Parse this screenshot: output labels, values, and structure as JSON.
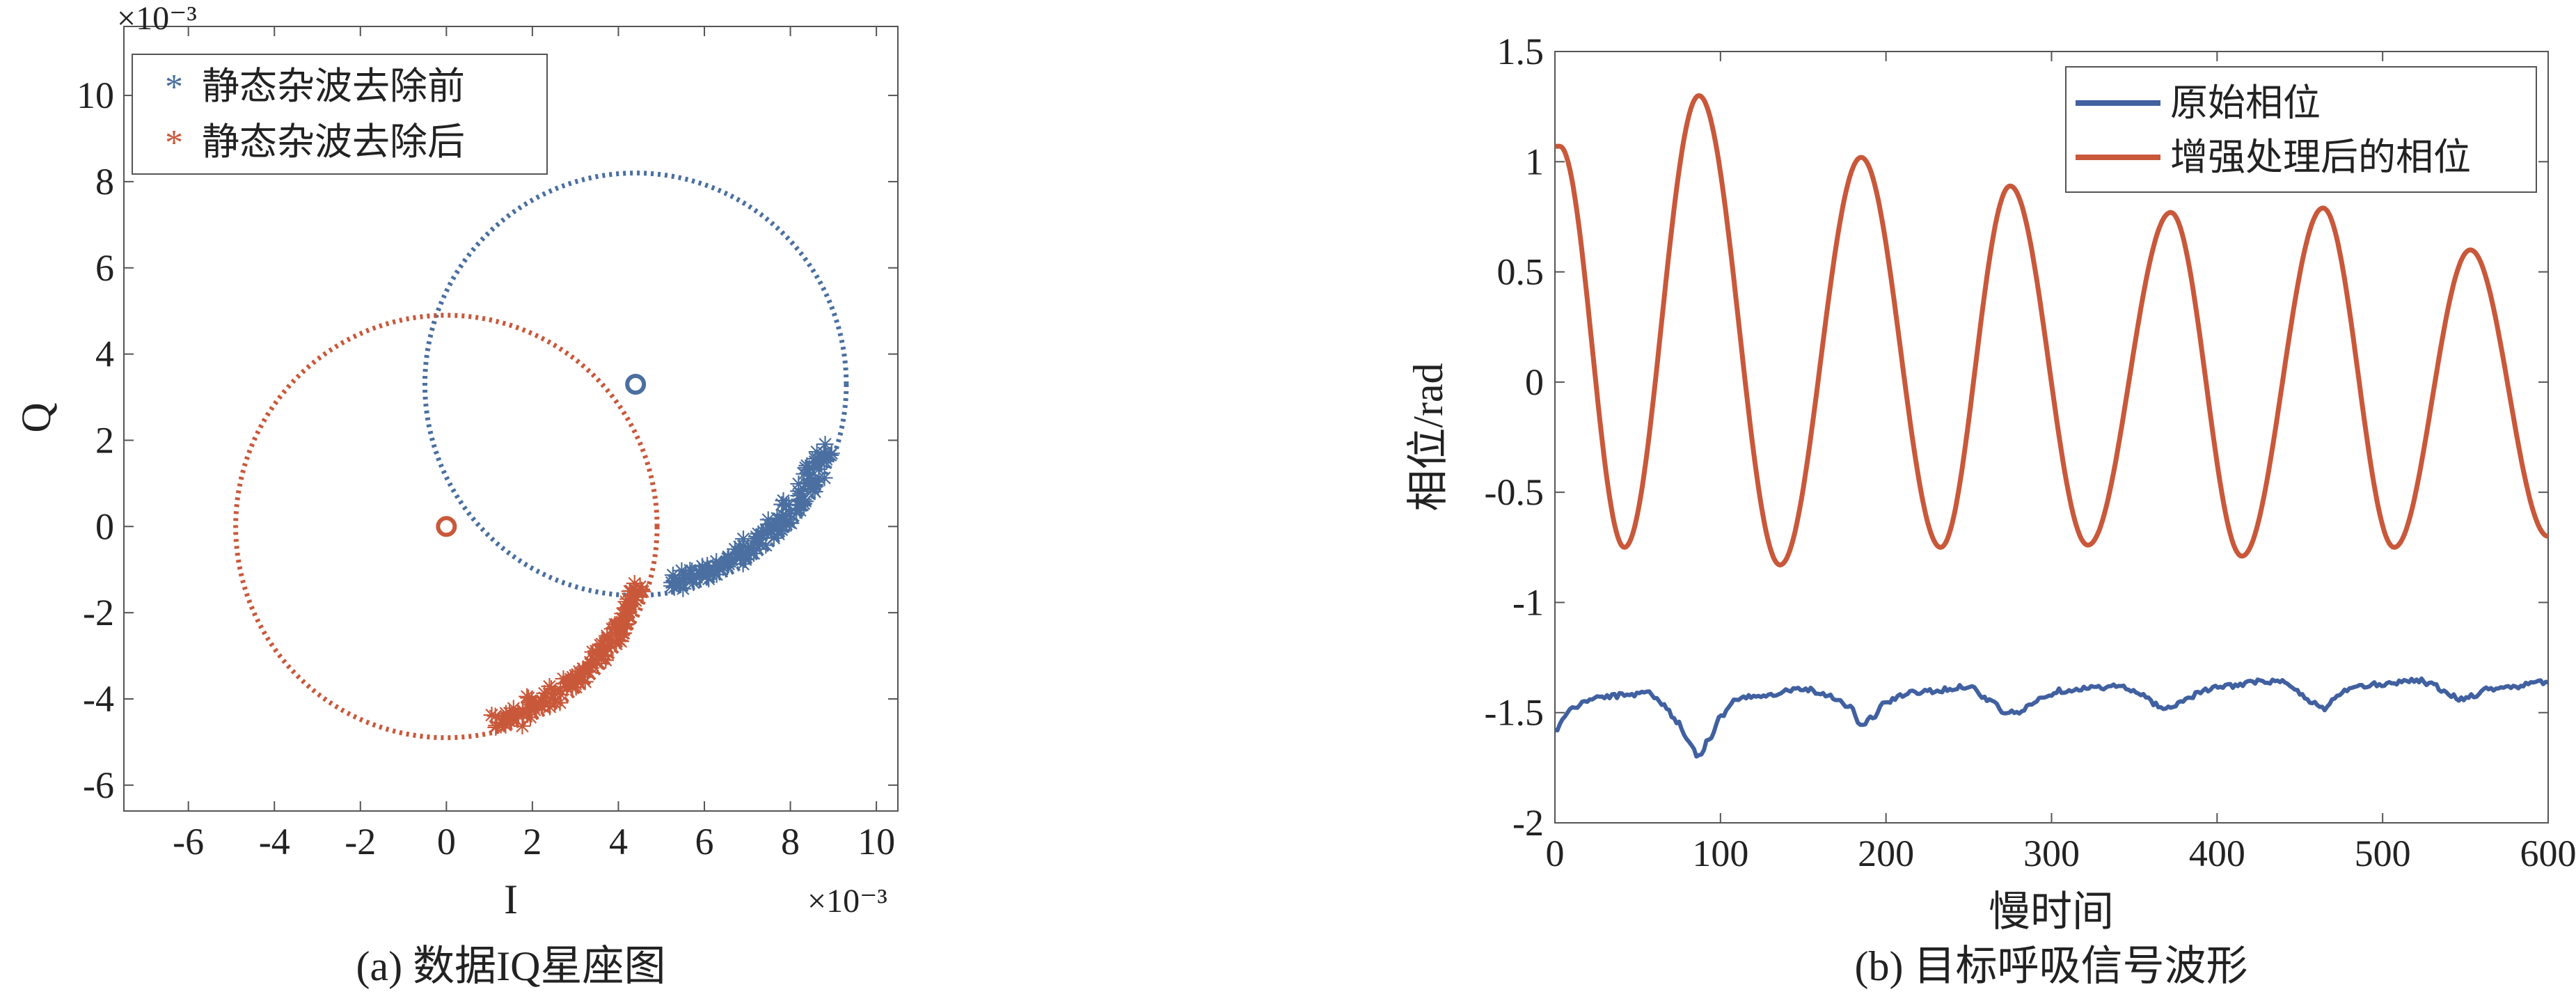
{
  "figure": {
    "left_caption": "(a) 数据IQ星座图",
    "right_caption": "(b) 目标呼吸信号波形"
  },
  "chart_data": [
    {
      "type": "scatter",
      "title": "",
      "xlabel": "I",
      "ylabel": "Q",
      "x_multiplier_text": "×10⁻³",
      "y_multiplier_text": "×10⁻³",
      "xlim": [
        -7.5,
        10.5
      ],
      "ylim": [
        -6.6,
        11.6
      ],
      "xticks": [
        -6,
        -4,
        -2,
        0,
        2,
        4,
        6,
        8,
        10
      ],
      "yticks": [
        -6,
        -4,
        -2,
        0,
        2,
        4,
        6,
        8,
        10
      ],
      "legend_position": "top-left",
      "colors": {
        "before": "#4a6fa0",
        "after": "#c9583a"
      },
      "legend": [
        "静态杂波去除前",
        "静态杂波去除后"
      ],
      "fitted_circles": [
        {
          "name": "before",
          "center": [
            4.4,
            3.3
          ],
          "radius": 4.9
        },
        {
          "name": "after",
          "center": [
            0.0,
            0.0
          ],
          "radius": 4.9
        }
      ],
      "series": [
        {
          "name": "静态杂波去除前",
          "x_range": [
            5.6,
            9.1
          ],
          "y_range": [
            -1.5,
            1.9
          ]
        },
        {
          "name": "静态杂波去除后",
          "x_range": [
            1.2,
            4.6
          ],
          "y_range": [
            -4.8,
            -1.4
          ]
        }
      ]
    },
    {
      "type": "line",
      "title": "",
      "xlabel": "慢时间",
      "ylabel": "相位/rad",
      "xlim": [
        0,
        600
      ],
      "ylim": [
        -2,
        1.5
      ],
      "xticks": [
        0,
        100,
        200,
        300,
        400,
        500,
        600
      ],
      "yticks": [
        -2,
        -1.5,
        -1,
        -0.5,
        0,
        0.5,
        1,
        1.5
      ],
      "legend_position": "top-right",
      "colors": {
        "original": "#4060a0",
        "enhanced": "#c9583a"
      },
      "series": [
        {
          "name": "原始相位",
          "x": [
            0,
            10,
            25,
            45,
            55,
            65,
            75,
            80,
            87,
            93,
            100,
            110,
            125,
            150,
            165,
            178,
            185,
            192,
            200,
            215,
            230,
            250,
            262,
            272,
            280,
            292,
            305,
            320,
            340,
            355,
            365,
            372,
            380,
            392,
            405,
            425,
            440,
            450,
            458,
            465,
            470,
            480,
            500,
            520,
            530,
            540,
            548,
            555,
            565,
            580,
            600
          ],
          "y": [
            -1.58,
            -1.48,
            -1.43,
            -1.42,
            -1.4,
            -1.46,
            -1.55,
            -1.62,
            -1.7,
            -1.62,
            -1.52,
            -1.44,
            -1.42,
            -1.39,
            -1.42,
            -1.47,
            -1.56,
            -1.52,
            -1.45,
            -1.41,
            -1.4,
            -1.38,
            -1.44,
            -1.5,
            -1.5,
            -1.44,
            -1.4,
            -1.39,
            -1.38,
            -1.42,
            -1.47,
            -1.48,
            -1.44,
            -1.4,
            -1.38,
            -1.36,
            -1.36,
            -1.41,
            -1.46,
            -1.48,
            -1.44,
            -1.39,
            -1.37,
            -1.35,
            -1.37,
            -1.42,
            -1.44,
            -1.42,
            -1.39,
            -1.38,
            -1.36
          ]
        },
        {
          "name": "增强处理后的相位",
          "peaks": [
            {
              "x": 3,
              "y": 1.07
            },
            {
              "x": 87,
              "y": 1.3
            },
            {
              "x": 185,
              "y": 1.02
            },
            {
              "x": 275,
              "y": 0.89
            },
            {
              "x": 372,
              "y": 0.77
            },
            {
              "x": 464,
              "y": 0.79
            },
            {
              "x": 553,
              "y": 0.6
            }
          ],
          "troughs": [
            {
              "x": 42,
              "y": -0.75
            },
            {
              "x": 136,
              "y": -0.83
            },
            {
              "x": 233,
              "y": -0.75
            },
            {
              "x": 322,
              "y": -0.74
            },
            {
              "x": 415,
              "y": -0.79
            },
            {
              "x": 507,
              "y": -0.75
            },
            {
              "x": 600,
              "y": -0.7
            }
          ]
        }
      ]
    }
  ]
}
